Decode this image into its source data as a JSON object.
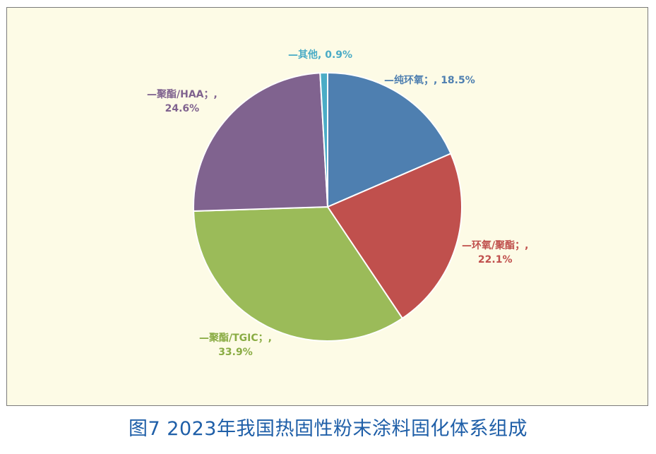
{
  "caption": "图7 2023年我国热固性粉末涂料固化体系组成",
  "chart_data": {
    "type": "pie",
    "title": "",
    "slices": [
      {
        "label": "纯环氧",
        "value": 18.5,
        "display_name": "—纯环氧；",
        "display_value": ", 18.5%",
        "color": "#4e7fb0"
      },
      {
        "label": "环氧/聚酯",
        "value": 22.1,
        "display_name": "—环氧/聚酯；,",
        "display_value": "22.1%",
        "color": "#c0504d"
      },
      {
        "label": "聚酯/TGIC",
        "value": 33.9,
        "display_name": "—聚酯/TGIC；,",
        "display_value": "33.9%",
        "color": "#9bbb59"
      },
      {
        "label": "聚酯/HAA",
        "value": 24.6,
        "display_name": "—聚酯/HAA；,",
        "display_value": "24.6%",
        "color": "#80638f"
      },
      {
        "label": "其他",
        "value": 0.9,
        "display_name": "—其他,",
        "display_value": "0.9%",
        "color": "#4bacc6"
      }
    ],
    "start_angle_deg": 0,
    "direction": "clockwise",
    "legend": "none"
  }
}
